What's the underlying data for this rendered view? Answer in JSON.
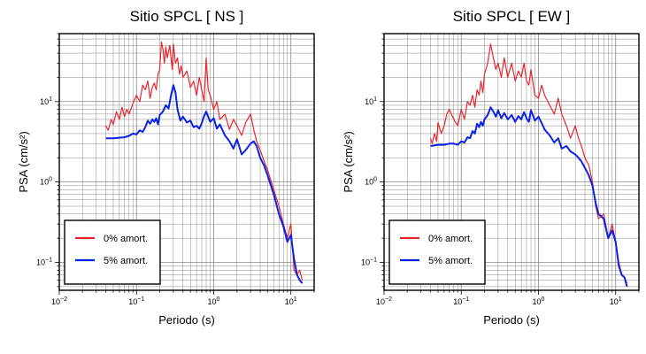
{
  "colors": {
    "damp0": "#e8262d",
    "damp5": "#0a22e6",
    "grid": "#888888",
    "frame": "#000000"
  },
  "chart_data": [
    {
      "type": "line",
      "title": "Sitio SPCL [ NS ]",
      "xlabel": "Periodo (s)",
      "ylabel": "PSA (cm/s²)",
      "xscale": "log",
      "yscale": "log",
      "xlim": [
        0.01,
        20
      ],
      "ylim": [
        0.045,
        70
      ],
      "xticks": [
        {
          "v": 0.01,
          "b": "10",
          "e": "−2"
        },
        {
          "v": 0.1,
          "b": "10",
          "e": "−1"
        },
        {
          "v": 1,
          "b": "10",
          "e": "0"
        },
        {
          "v": 10,
          "b": "10",
          "e": "1"
        }
      ],
      "yticks": [
        {
          "v": 0.1,
          "b": "10",
          "e": "−1"
        },
        {
          "v": 1,
          "b": "10",
          "e": "0"
        },
        {
          "v": 10,
          "b": "10",
          "e": "1"
        }
      ],
      "grid": true,
      "legend_position": "bottom-left",
      "series": [
        {
          "name": "0% amort.",
          "color": "#e8262d",
          "x": [
            0.04,
            0.043,
            0.047,
            0.05,
            0.055,
            0.06,
            0.065,
            0.07,
            0.075,
            0.08,
            0.09,
            0.1,
            0.11,
            0.12,
            0.13,
            0.14,
            0.15,
            0.16,
            0.17,
            0.18,
            0.19,
            0.2,
            0.21,
            0.22,
            0.23,
            0.24,
            0.25,
            0.27,
            0.29,
            0.3,
            0.32,
            0.34,
            0.36,
            0.38,
            0.4,
            0.45,
            0.5,
            0.55,
            0.6,
            0.65,
            0.7,
            0.75,
            0.8,
            0.85,
            0.9,
            1.0,
            1.1,
            1.2,
            1.4,
            1.6,
            1.8,
            2.0,
            2.3,
            2.6,
            3.0,
            3.3,
            3.6,
            4.0,
            4.5,
            5.0,
            6.0,
            7.0,
            8.0,
            9.0,
            10.0,
            11.0,
            12.0,
            13.0,
            14.0
          ],
          "y": [
            5.0,
            4.4,
            6.0,
            5.2,
            7.5,
            6.0,
            8.5,
            6.5,
            8.0,
            7.0,
            9.5,
            12.0,
            10.0,
            16.0,
            14.0,
            18.0,
            11.0,
            15.0,
            17.0,
            14.0,
            22.0,
            25.0,
            55.0,
            45.0,
            30.0,
            48.0,
            35.0,
            50.0,
            25.0,
            52.0,
            30.0,
            35.0,
            22.0,
            28.0,
            20.0,
            24.0,
            15.0,
            18.0,
            12.0,
            20.0,
            14.0,
            10.0,
            35.0,
            14.0,
            12.0,
            8.0,
            10.0,
            6.0,
            7.0,
            4.5,
            6.0,
            5.0,
            3.8,
            5.5,
            7.0,
            4.5,
            3.2,
            2.5,
            1.8,
            1.4,
            0.8,
            0.5,
            0.3,
            0.2,
            0.3,
            0.08,
            0.07,
            0.08,
            0.06
          ]
        },
        {
          "name": "5% amort.",
          "color": "#0a22e6",
          "x": [
            0.04,
            0.05,
            0.06,
            0.07,
            0.08,
            0.09,
            0.1,
            0.11,
            0.12,
            0.13,
            0.14,
            0.15,
            0.16,
            0.17,
            0.18,
            0.19,
            0.2,
            0.22,
            0.24,
            0.26,
            0.28,
            0.3,
            0.32,
            0.34,
            0.37,
            0.4,
            0.45,
            0.5,
            0.55,
            0.6,
            0.65,
            0.7,
            0.75,
            0.8,
            0.9,
            1.0,
            1.1,
            1.2,
            1.4,
            1.6,
            1.8,
            2.0,
            2.3,
            2.6,
            3.0,
            3.3,
            3.6,
            4.0,
            4.5,
            5.0,
            6.0,
            7.0,
            8.0,
            9.0,
            10.0,
            11.0,
            12.0,
            13.0,
            14.0
          ],
          "y": [
            3.5,
            3.5,
            3.55,
            3.6,
            3.75,
            4.0,
            3.9,
            4.4,
            4.2,
            4.8,
            5.8,
            5.3,
            6.0,
            5.6,
            6.2,
            5.2,
            6.8,
            7.5,
            9.0,
            8.2,
            12.0,
            16.0,
            13.0,
            8.0,
            5.8,
            6.5,
            5.5,
            5.8,
            4.8,
            5.0,
            4.6,
            5.4,
            6.6,
            7.5,
            5.6,
            6.2,
            4.6,
            5.2,
            3.8,
            3.2,
            2.6,
            3.4,
            2.2,
            2.5,
            3.0,
            3.2,
            2.8,
            2.0,
            1.6,
            1.2,
            0.7,
            0.4,
            0.28,
            0.18,
            0.22,
            0.11,
            0.07,
            0.06,
            0.055
          ]
        }
      ]
    },
    {
      "type": "line",
      "title": "Sitio SPCL [ EW ]",
      "xlabel": "Periodo (s)",
      "ylabel": "PSA (cm/s²)",
      "xscale": "log",
      "yscale": "log",
      "xlim": [
        0.01,
        20
      ],
      "ylim": [
        0.045,
        70
      ],
      "xticks": [
        {
          "v": 0.01,
          "b": "10",
          "e": "−2"
        },
        {
          "v": 0.1,
          "b": "10",
          "e": "−1"
        },
        {
          "v": 1,
          "b": "10",
          "e": "0"
        },
        {
          "v": 10,
          "b": "10",
          "e": "1"
        }
      ],
      "yticks": [
        {
          "v": 0.1,
          "b": "10",
          "e": "−1"
        },
        {
          "v": 1,
          "b": "10",
          "e": "0"
        },
        {
          "v": 10,
          "b": "10",
          "e": "1"
        }
      ],
      "grid": true,
      "legend_position": "bottom-left",
      "series": [
        {
          "name": "0% amort.",
          "color": "#e8262d",
          "x": [
            0.04,
            0.042,
            0.045,
            0.048,
            0.05,
            0.055,
            0.06,
            0.065,
            0.07,
            0.08,
            0.09,
            0.1,
            0.11,
            0.12,
            0.13,
            0.14,
            0.15,
            0.16,
            0.17,
            0.18,
            0.19,
            0.2,
            0.22,
            0.24,
            0.26,
            0.28,
            0.3,
            0.33,
            0.36,
            0.4,
            0.45,
            0.5,
            0.55,
            0.6,
            0.65,
            0.7,
            0.75,
            0.8,
            0.9,
            1.0,
            1.1,
            1.2,
            1.4,
            1.6,
            1.8,
            2.0,
            2.3,
            2.6,
            3.0,
            3.3,
            3.6,
            4.0,
            4.5,
            5.0,
            5.5,
            6.0,
            7.0,
            8.0,
            9.0,
            10.0,
            11.0,
            12.0,
            13.0,
            14.0
          ],
          "y": [
            3.5,
            3.0,
            4.0,
            3.2,
            5.5,
            4.0,
            5.0,
            7.0,
            8.0,
            6.0,
            5.0,
            8.0,
            6.0,
            10.0,
            9.0,
            12.0,
            8.5,
            14.0,
            12.0,
            18.0,
            13.0,
            22.0,
            30.0,
            52.0,
            35.0,
            25.0,
            30.0,
            20.0,
            35.0,
            20.0,
            30.0,
            18.0,
            24.0,
            20.0,
            30.0,
            18.0,
            16.0,
            25.0,
            12.0,
            11.0,
            16.0,
            12.0,
            9.0,
            7.0,
            11.0,
            7.0,
            5.0,
            3.5,
            5.0,
            3.5,
            2.8,
            2.0,
            1.6,
            1.0,
            0.5,
            0.35,
            0.4,
            0.2,
            0.3,
            0.18,
            0.1,
            0.07,
            0.065,
            0.055
          ]
        },
        {
          "name": "5% amort.",
          "color": "#0a22e6",
          "x": [
            0.04,
            0.05,
            0.06,
            0.07,
            0.08,
            0.09,
            0.1,
            0.11,
            0.12,
            0.13,
            0.14,
            0.15,
            0.16,
            0.17,
            0.18,
            0.19,
            0.2,
            0.22,
            0.24,
            0.26,
            0.28,
            0.3,
            0.33,
            0.36,
            0.4,
            0.45,
            0.5,
            0.55,
            0.6,
            0.65,
            0.7,
            0.75,
            0.8,
            0.9,
            1.0,
            1.1,
            1.2,
            1.4,
            1.6,
            1.8,
            2.0,
            2.3,
            2.6,
            3.0,
            3.3,
            3.6,
            4.0,
            4.5,
            5.0,
            5.5,
            6.0,
            7.0,
            8.0,
            9.0,
            10.0,
            11.0,
            12.0,
            13.0,
            14.0
          ],
          "y": [
            2.8,
            2.9,
            2.9,
            3.0,
            3.0,
            2.9,
            3.2,
            3.1,
            3.6,
            3.5,
            4.3,
            4.0,
            5.3,
            4.8,
            5.6,
            5.0,
            6.0,
            6.8,
            8.5,
            7.5,
            6.5,
            7.8,
            6.2,
            7.2,
            6.0,
            6.8,
            5.6,
            6.6,
            6.0,
            7.4,
            6.2,
            5.6,
            7.8,
            5.8,
            6.5,
            5.4,
            4.5,
            3.8,
            3.1,
            3.5,
            2.6,
            2.8,
            2.4,
            2.2,
            2.0,
            1.8,
            1.5,
            1.2,
            0.9,
            0.55,
            0.4,
            0.35,
            0.2,
            0.25,
            0.18,
            0.09,
            0.07,
            0.065,
            0.05
          ]
        }
      ]
    }
  ]
}
